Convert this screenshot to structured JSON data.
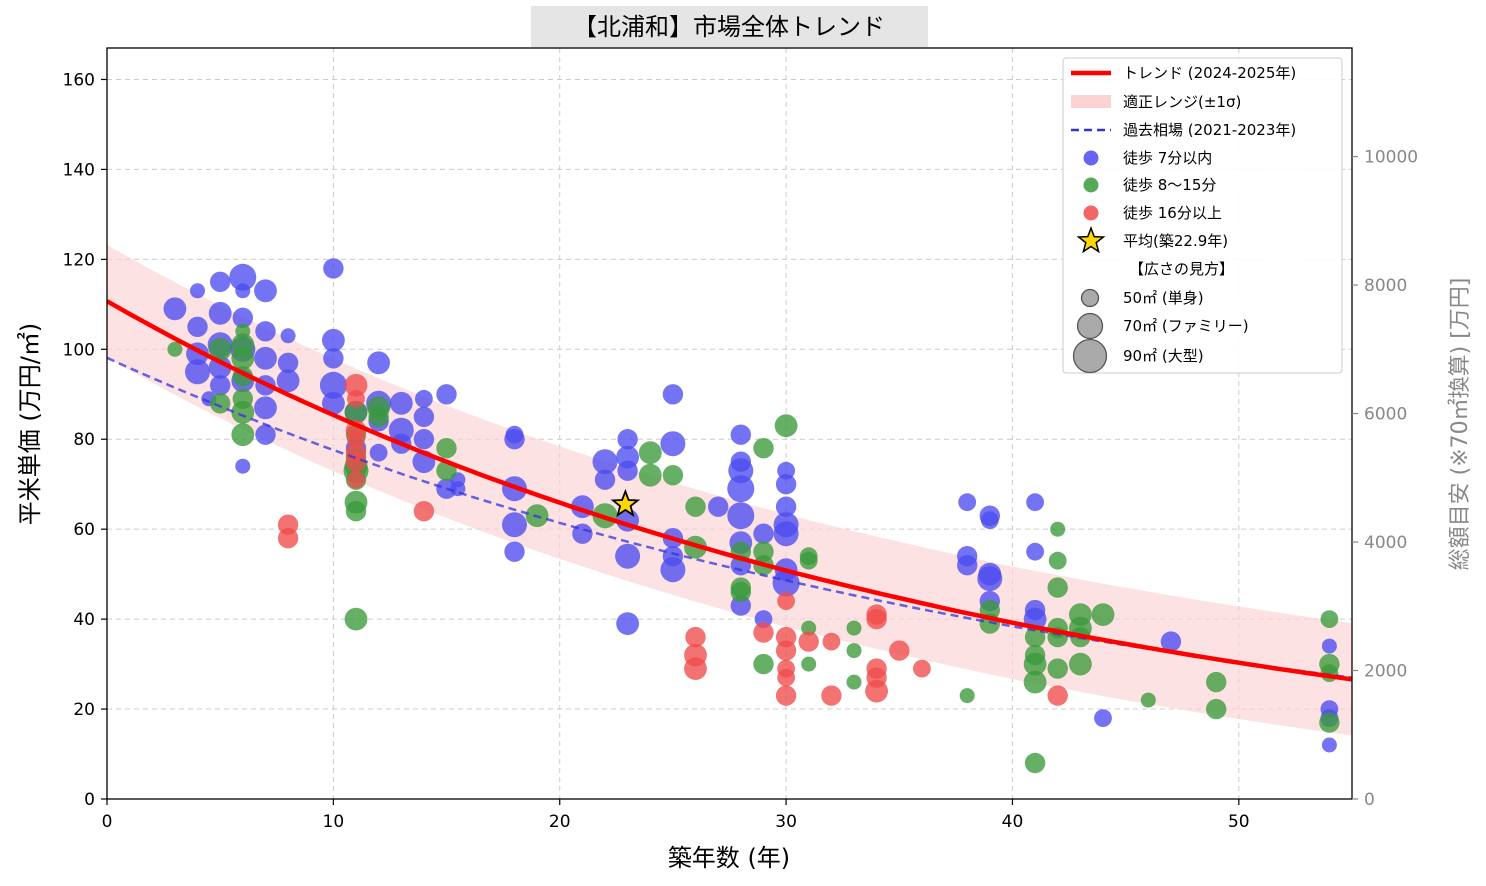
{
  "chart_data": {
    "type": "scatter",
    "title": "【北浦和】市場全体トレンド",
    "xlabel": "築年数 (年)",
    "ylabel": "平米単価 (万円/㎡)",
    "ylabel_right": "総額目安 (※70㎡換算) [万円]",
    "xlim": [
      0,
      55
    ],
    "ylim": [
      0,
      167
    ],
    "ylim_right": [
      0,
      11690
    ],
    "x_ticks": [
      "0",
      "10",
      "20",
      "30",
      "40",
      "50"
    ],
    "y_ticks": [
      "0",
      "20",
      "40",
      "60",
      "80",
      "100",
      "120",
      "140",
      "160"
    ],
    "y_right_ticks": [
      "0",
      "2000",
      "4000",
      "6000",
      "8000",
      "10000"
    ],
    "grid": true,
    "legend_position": "top-right",
    "legend": {
      "trend": "トレンド (2024-2025年)",
      "band": "適正レンジ(±1σ)",
      "past": "過去相場 (2021-2023年)",
      "walk_near": "徒歩 7分以内",
      "walk_mid": "徒歩 8〜15分",
      "walk_far": "徒歩 16分以上",
      "average": "平均(築22.9年)",
      "size_header": "【広さの見方】",
      "size_50": "50㎡ (単身)",
      "size_70": "70㎡ (ファミリー)",
      "size_90": "90㎡ (大型)"
    },
    "colors": {
      "trend": "#ff0000",
      "band": "#fbd3d3",
      "past": "#3333dd",
      "walk_near": "#4b4bf0",
      "walk_mid": "#3a9a3a",
      "walk_far": "#f04b4b",
      "average": "#ffd700"
    },
    "trend": {
      "x": [
        0,
        5,
        10,
        15,
        20,
        25,
        30,
        35,
        40,
        45,
        50,
        55
      ],
      "y": [
        110.7,
        97.2,
        85.4,
        75.0,
        65.9,
        57.9,
        50.8,
        44.7,
        39.2,
        34.5,
        30.3,
        26.6
      ]
    },
    "band_sigma": 12.5,
    "past": {
      "x": [
        0,
        5,
        10,
        15,
        20,
        25,
        30,
        35,
        40,
        45,
        50,
        55
      ],
      "y": [
        98.1,
        87.3,
        77.6,
        69.0,
        61.4,
        54.6,
        48.6,
        43.2,
        38.4,
        34.2,
        30.4,
        27.0
      ]
    },
    "average": {
      "age": 22.9,
      "price": 65.5
    },
    "series": [
      {
        "name": "徒歩 7分以内",
        "points": [
          [
            3,
            109,
            70
          ],
          [
            4,
            113,
            40
          ],
          [
            4,
            105,
            60
          ],
          [
            4,
            99,
            70
          ],
          [
            4,
            95,
            80
          ],
          [
            4.5,
            89,
            40
          ],
          [
            5,
            115,
            60
          ],
          [
            5,
            108,
            70
          ],
          [
            5,
            101,
            80
          ],
          [
            5,
            96,
            70
          ],
          [
            5,
            92,
            60
          ],
          [
            6,
            116,
            90
          ],
          [
            6,
            113,
            40
          ],
          [
            6,
            107,
            60
          ],
          [
            6,
            100,
            80
          ],
          [
            6,
            93,
            70
          ],
          [
            6,
            74,
            40
          ],
          [
            7,
            113,
            70
          ],
          [
            7,
            104,
            60
          ],
          [
            7,
            98,
            70
          ],
          [
            7,
            92,
            60
          ],
          [
            7,
            87,
            70
          ],
          [
            7,
            81,
            60
          ],
          [
            8,
            103,
            40
          ],
          [
            8,
            97,
            60
          ],
          [
            8,
            93,
            70
          ],
          [
            10,
            118,
            60
          ],
          [
            10,
            102,
            70
          ],
          [
            10,
            98,
            60
          ],
          [
            10,
            92,
            90
          ],
          [
            10,
            88,
            70
          ],
          [
            11,
            86,
            70
          ],
          [
            11,
            78,
            60
          ],
          [
            12,
            97,
            70
          ],
          [
            12,
            88,
            80
          ],
          [
            12,
            84,
            60
          ],
          [
            12,
            77,
            50
          ],
          [
            13,
            88,
            70
          ],
          [
            13,
            82,
            80
          ],
          [
            13,
            79,
            60
          ],
          [
            14,
            89,
            50
          ],
          [
            14,
            85,
            60
          ],
          [
            14,
            80,
            60
          ],
          [
            14,
            75,
            70
          ],
          [
            15,
            90,
            60
          ],
          [
            15,
            69,
            60
          ],
          [
            15.5,
            71,
            40
          ],
          [
            15.5,
            69,
            40
          ],
          [
            18,
            81,
            50
          ],
          [
            18,
            80,
            60
          ],
          [
            18,
            69,
            80
          ],
          [
            18,
            61,
            80
          ],
          [
            18,
            55,
            60
          ],
          [
            21,
            65,
            70
          ],
          [
            21,
            59,
            60
          ],
          [
            22,
            75,
            80
          ],
          [
            22,
            71,
            60
          ],
          [
            23,
            80,
            60
          ],
          [
            23,
            76,
            70
          ],
          [
            23,
            73,
            60
          ],
          [
            23,
            62,
            70
          ],
          [
            23,
            54,
            80
          ],
          [
            23,
            39,
            70
          ],
          [
            25,
            90,
            60
          ],
          [
            25,
            79,
            80
          ],
          [
            25,
            58,
            60
          ],
          [
            25,
            54,
            60
          ],
          [
            25,
            51,
            80
          ],
          [
            27,
            65,
            60
          ],
          [
            28,
            81,
            60
          ],
          [
            28,
            75,
            60
          ],
          [
            28,
            73,
            80
          ],
          [
            28,
            69,
            90
          ],
          [
            28,
            63,
            90
          ],
          [
            28,
            57,
            70
          ],
          [
            28,
            52,
            60
          ],
          [
            28,
            43,
            60
          ],
          [
            29,
            59,
            60
          ],
          [
            29,
            40,
            50
          ],
          [
            30,
            73,
            50
          ],
          [
            30,
            70,
            60
          ],
          [
            30,
            65,
            60
          ],
          [
            30,
            61,
            80
          ],
          [
            30,
            59,
            80
          ],
          [
            30,
            51,
            70
          ],
          [
            30,
            48,
            90
          ],
          [
            38,
            66,
            50
          ],
          [
            38,
            54,
            60
          ],
          [
            38,
            52,
            60
          ],
          [
            39,
            63,
            60
          ],
          [
            39,
            62,
            50
          ],
          [
            39,
            50,
            70
          ],
          [
            39,
            49,
            80
          ],
          [
            39,
            44,
            60
          ],
          [
            41,
            66,
            50
          ],
          [
            41,
            55,
            50
          ],
          [
            41,
            42,
            60
          ],
          [
            41,
            40,
            70
          ],
          [
            44,
            18,
            50
          ],
          [
            47,
            35,
            60
          ],
          [
            54,
            34,
            40
          ],
          [
            54,
            20,
            50
          ],
          [
            54,
            18,
            50
          ],
          [
            54,
            12,
            40
          ]
        ]
      },
      {
        "name": "徒歩 8〜15分",
        "points": [
          [
            3,
            100,
            40
          ],
          [
            5,
            100,
            70
          ],
          [
            5,
            88,
            60
          ],
          [
            6,
            104,
            40
          ],
          [
            6,
            101,
            70
          ],
          [
            6,
            98,
            70
          ],
          [
            6,
            94,
            60
          ],
          [
            6,
            89,
            60
          ],
          [
            6,
            86,
            70
          ],
          [
            6,
            81,
            70
          ],
          [
            11,
            86,
            70
          ],
          [
            11,
            81,
            60
          ],
          [
            11,
            76,
            60
          ],
          [
            11,
            74,
            70
          ],
          [
            11,
            73,
            80
          ],
          [
            11,
            71,
            60
          ],
          [
            11,
            66,
            70
          ],
          [
            11,
            64,
            60
          ],
          [
            11,
            40,
            70
          ],
          [
            12,
            87,
            70
          ],
          [
            12,
            85,
            60
          ],
          [
            15,
            78,
            60
          ],
          [
            15,
            73,
            60
          ],
          [
            19,
            63,
            70
          ],
          [
            22,
            63,
            80
          ],
          [
            24,
            77,
            70
          ],
          [
            24,
            72,
            70
          ],
          [
            25,
            72,
            60
          ],
          [
            26,
            65,
            60
          ],
          [
            26,
            56,
            70
          ],
          [
            28,
            55,
            60
          ],
          [
            28,
            47,
            60
          ],
          [
            28,
            46,
            60
          ],
          [
            29,
            78,
            60
          ],
          [
            29,
            55,
            60
          ],
          [
            29,
            52,
            60
          ],
          [
            29,
            30,
            60
          ],
          [
            30,
            83,
            70
          ],
          [
            31,
            54,
            50
          ],
          [
            31,
            53,
            50
          ],
          [
            31,
            38,
            40
          ],
          [
            31,
            30,
            40
          ],
          [
            33,
            38,
            40
          ],
          [
            33,
            33,
            40
          ],
          [
            33,
            26,
            40
          ],
          [
            38,
            23,
            40
          ],
          [
            39,
            42,
            60
          ],
          [
            39,
            39,
            60
          ],
          [
            41,
            36,
            60
          ],
          [
            41,
            32,
            60
          ],
          [
            41,
            30,
            70
          ],
          [
            41,
            26,
            70
          ],
          [
            41,
            8,
            60
          ],
          [
            42,
            60,
            40
          ],
          [
            42,
            53,
            50
          ],
          [
            42,
            47,
            60
          ],
          [
            42,
            38,
            60
          ],
          [
            42,
            36,
            60
          ],
          [
            42,
            29,
            60
          ],
          [
            43,
            41,
            70
          ],
          [
            43,
            38,
            70
          ],
          [
            43,
            36,
            60
          ],
          [
            43,
            30,
            70
          ],
          [
            44,
            41,
            70
          ],
          [
            46,
            22,
            40
          ],
          [
            49,
            26,
            60
          ],
          [
            49,
            20,
            60
          ],
          [
            54,
            40,
            50
          ],
          [
            54,
            30,
            60
          ],
          [
            54,
            28,
            50
          ],
          [
            54,
            17,
            60
          ]
        ]
      },
      {
        "name": "徒歩 16分以上",
        "points": [
          [
            8,
            61,
            60
          ],
          [
            8,
            58,
            60
          ],
          [
            11,
            92,
            70
          ],
          [
            11,
            89,
            50
          ],
          [
            11,
            82,
            60
          ],
          [
            11,
            80,
            50
          ],
          [
            11,
            77,
            60
          ],
          [
            11,
            75,
            60
          ],
          [
            11,
            71,
            50
          ],
          [
            14,
            64,
            60
          ],
          [
            26,
            36,
            60
          ],
          [
            26,
            32,
            70
          ],
          [
            26,
            29,
            70
          ],
          [
            29,
            37,
            60
          ],
          [
            30,
            44,
            50
          ],
          [
            30,
            36,
            60
          ],
          [
            30,
            33,
            60
          ],
          [
            30,
            29,
            50
          ],
          [
            30,
            27,
            50
          ],
          [
            30,
            23,
            60
          ],
          [
            31,
            35,
            60
          ],
          [
            32,
            35,
            50
          ],
          [
            32,
            23,
            60
          ],
          [
            34,
            41,
            60
          ],
          [
            34,
            40,
            60
          ],
          [
            34,
            29,
            60
          ],
          [
            34,
            27,
            60
          ],
          [
            34,
            24,
            70
          ],
          [
            35,
            33,
            60
          ],
          [
            36,
            29,
            50
          ],
          [
            42,
            23,
            60
          ]
        ]
      }
    ]
  }
}
